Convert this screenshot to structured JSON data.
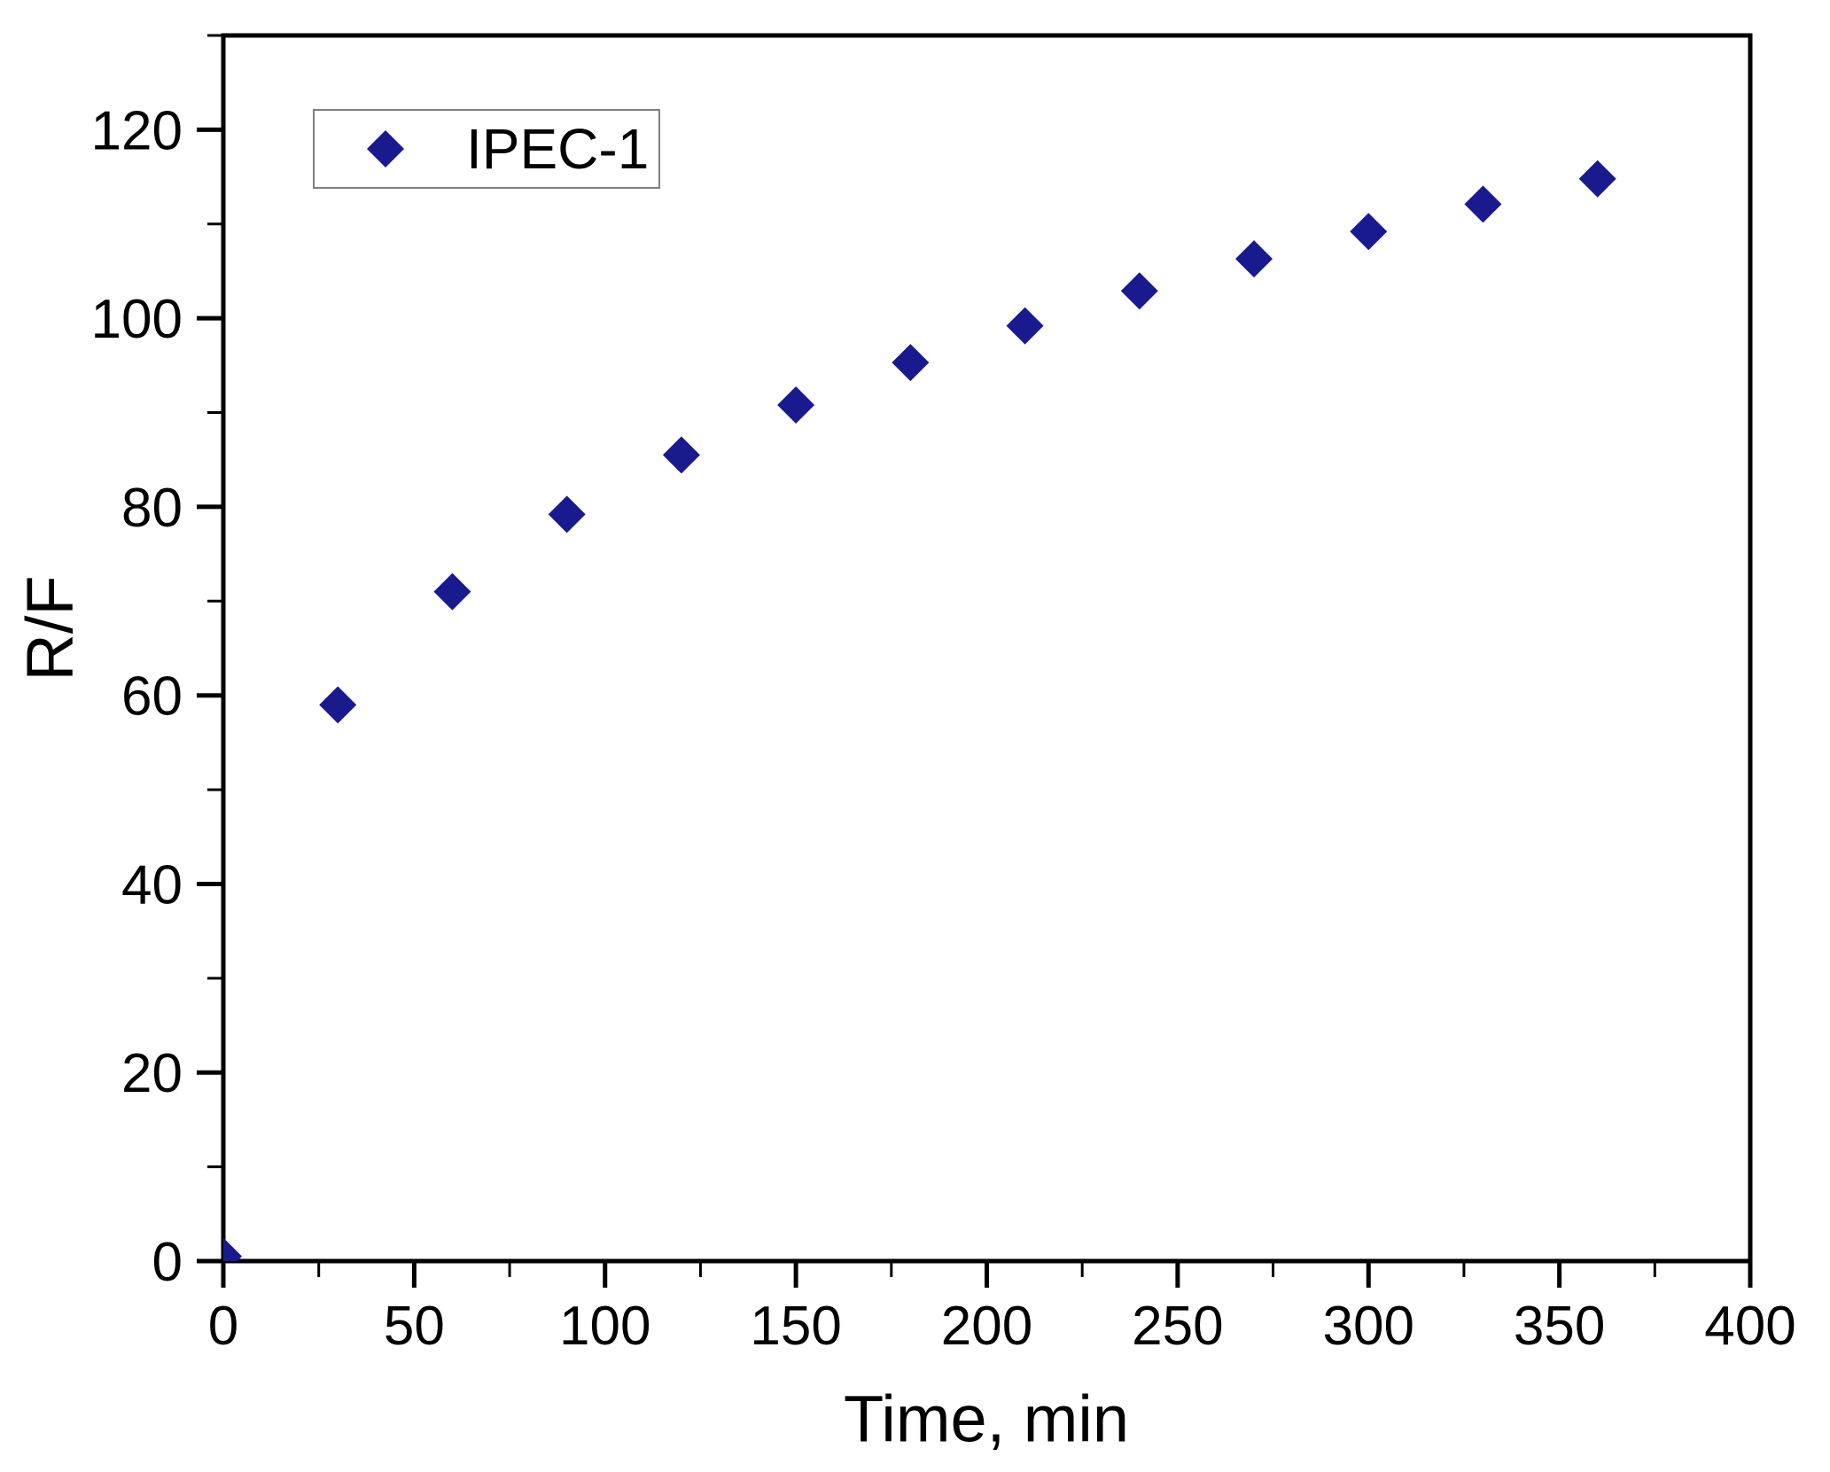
{
  "chart_data": {
    "type": "scatter",
    "title": "",
    "xlabel": "Time, min",
    "ylabel": "R/F",
    "xlim": [
      0,
      400
    ],
    "ylim": [
      0,
      130
    ],
    "x_major_ticks": [
      0,
      50,
      100,
      150,
      200,
      250,
      300,
      350,
      400
    ],
    "x_minor_tick_step": 25,
    "y_major_ticks": [
      0,
      20,
      40,
      60,
      80,
      100,
      120
    ],
    "y_minor_tick_step": 10,
    "grid": "off",
    "legend_position": "top-left-inside",
    "series": [
      {
        "name": "IPEC-1",
        "marker": "diamond",
        "color": "#1a1a8f",
        "x": [
          0,
          30,
          60,
          90,
          120,
          150,
          180,
          210,
          240,
          270,
          300,
          330,
          360
        ],
        "y": [
          0.5,
          59,
          71,
          79.2,
          85.5,
          90.8,
          95.3,
          99.2,
          102.9,
          106.3,
          109.2,
          112.1,
          114.8
        ]
      }
    ],
    "colors": {
      "marker": "#1a1a8f",
      "axis": "#000000",
      "tick_labels": "#000000",
      "legend_border": "#7f7f7f",
      "background": "#ffffff"
    }
  }
}
